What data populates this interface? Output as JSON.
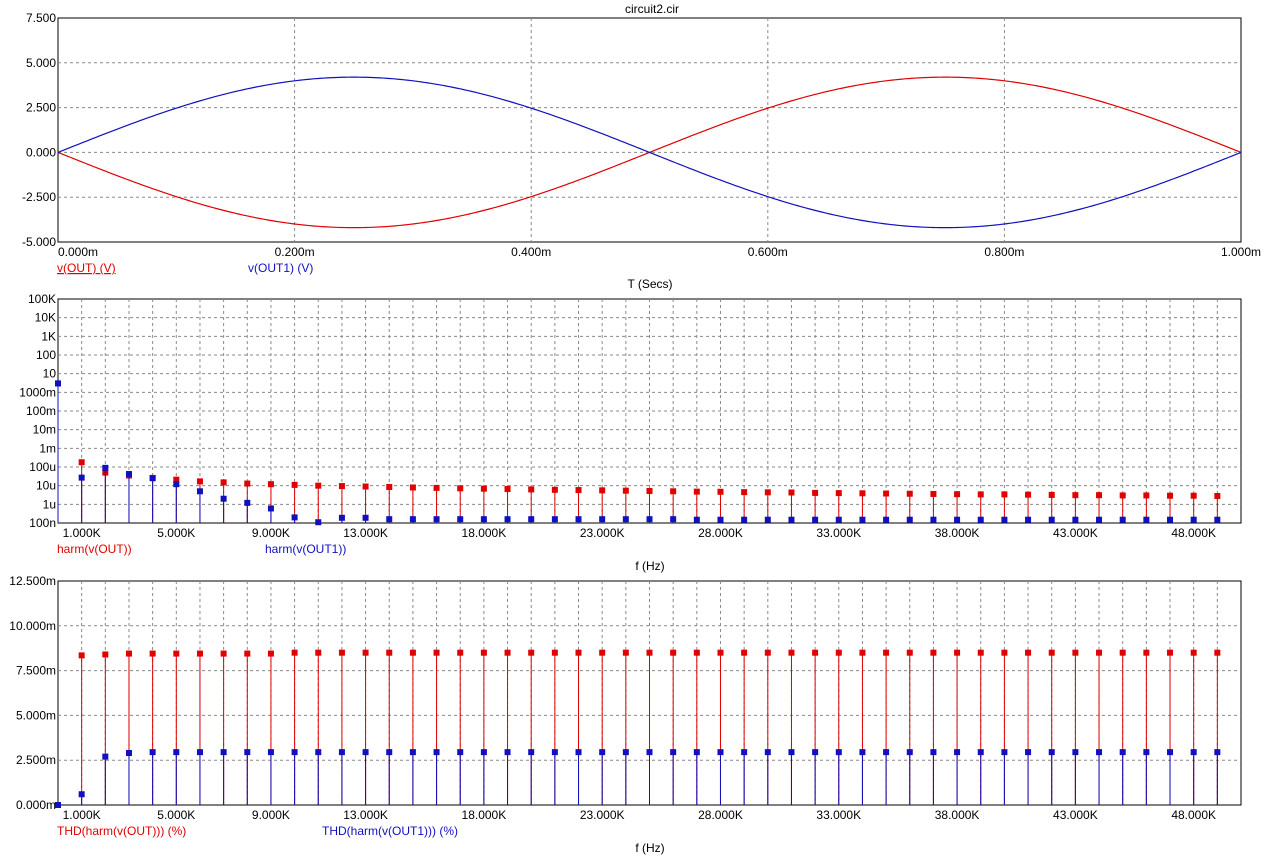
{
  "window": {
    "title": "circuit2.cir"
  },
  "colors": {
    "red": "#e00000",
    "blue": "#1010c0",
    "grid": "#8a8a8a",
    "axis": "#000000"
  },
  "chart_data": [
    {
      "id": "transient",
      "type": "line",
      "xlabel": "T (Secs)",
      "xlim": [
        0,
        0.001
      ],
      "ylim": [
        -5,
        7.5
      ],
      "x_ticks": [
        "0.000m",
        "0.200m",
        "0.400m",
        "0.600m",
        "0.800m",
        "1.000m"
      ],
      "y_ticks": [
        "7.500",
        "5.000",
        "2.500",
        "0.000",
        "-2.500",
        "-5.000"
      ],
      "grid": true,
      "series": [
        {
          "name": "v(OUT) (V)",
          "color": "#e00000",
          "amplitude": 4.2,
          "frequency_hz": 1000,
          "sign": -1
        },
        {
          "name": "v(OUT1) (V)",
          "color": "#1010c0",
          "amplitude": 4.2,
          "frequency_hz": 1000,
          "sign": 1
        }
      ]
    },
    {
      "id": "harmonics",
      "type": "scatter",
      "xlabel": "f (Hz)",
      "y_scale": "log",
      "xlim": [
        0,
        50000
      ],
      "ylim": [
        1e-07,
        100000.0
      ],
      "x_ticks": [
        "1.000K",
        "5.000K",
        "9.000K",
        "13.000K",
        "18.000K",
        "23.000K",
        "28.000K",
        "33.000K",
        "38.000K",
        "43.000K",
        "48.000K"
      ],
      "y_ticks": [
        "100K",
        "10K",
        "1K",
        "100",
        "10",
        "1000m",
        "100m",
        "10m",
        "1m",
        "100u",
        "10u",
        "1u",
        "100n"
      ],
      "grid": true,
      "series": [
        {
          "name": "harm(v(OUT))",
          "color": "#e00000",
          "x": [
            0,
            1000,
            2000,
            3000,
            4000,
            5000,
            6000,
            7000,
            8000,
            9000,
            10000,
            11000,
            12000,
            13000,
            14000,
            15000,
            16000,
            17000,
            18000,
            19000,
            20000,
            21000,
            22000,
            23000,
            24000,
            25000,
            26000,
            27000,
            28000,
            29000,
            30000,
            31000,
            32000,
            33000,
            34000,
            35000,
            36000,
            37000,
            38000,
            39000,
            40000,
            41000,
            42000,
            43000,
            44000,
            45000,
            46000,
            47000,
            48000,
            49000
          ],
          "values": [
            3.0,
            0.00018,
            5e-05,
            3.5e-05,
            2.6e-05,
            2.1e-05,
            1.7e-05,
            1.5e-05,
            1.3e-05,
            1.2e-05,
            1.1e-05,
            1e-05,
            9.5e-06,
            9e-06,
            8.5e-06,
            8e-06,
            7.6e-06,
            7.2e-06,
            6.9e-06,
            6.6e-06,
            6.3e-06,
            6e-06,
            5.8e-06,
            5.6e-06,
            5.4e-06,
            5.2e-06,
            5e-06,
            4.8e-06,
            4.7e-06,
            4.5e-06,
            4.4e-06,
            4.3e-06,
            4.1e-06,
            4e-06,
            3.9e-06,
            3.8e-06,
            3.7e-06,
            3.6e-06,
            3.5e-06,
            3.4e-06,
            3.4e-06,
            3.3e-06,
            3.2e-06,
            3.1e-06,
            3.1e-06,
            3e-06,
            3e-06,
            2.9e-06,
            2.9e-06,
            2.8e-06
          ]
        },
        {
          "name": "harm(v(OUT1))",
          "color": "#1010c0",
          "x": [
            0,
            1000,
            2000,
            3000,
            4000,
            5000,
            6000,
            7000,
            8000,
            9000,
            10000,
            11000,
            12000,
            13000,
            14000,
            15000,
            16000,
            17000,
            18000,
            19000,
            20000,
            21000,
            22000,
            23000,
            24000,
            25000,
            26000,
            27000,
            28000,
            29000,
            30000,
            31000,
            32000,
            33000,
            34000,
            35000,
            36000,
            37000,
            38000,
            39000,
            40000,
            41000,
            42000,
            43000,
            44000,
            45000,
            46000,
            47000,
            48000,
            49000
          ],
          "values": [
            3.0,
            2.7e-05,
            9e-05,
            4.2e-05,
            2.5e-05,
            1.2e-05,
            5e-06,
            2e-06,
            1.2e-06,
            6e-07,
            2e-07,
            1.1e-07,
            1.9e-07,
            1.9e-07,
            1.6e-07,
            1.6e-07,
            1.6e-07,
            1.6e-07,
            1.6e-07,
            1.6e-07,
            1.6e-07,
            1.6e-07,
            1.6e-07,
            1.6e-07,
            1.6e-07,
            1.6e-07,
            1.6e-07,
            1.5e-07,
            1.5e-07,
            1.5e-07,
            1.5e-07,
            1.5e-07,
            1.5e-07,
            1.5e-07,
            1.5e-07,
            1.5e-07,
            1.5e-07,
            1.5e-07,
            1.5e-07,
            1.5e-07,
            1.5e-07,
            1.5e-07,
            1.5e-07,
            1.5e-07,
            1.5e-07,
            1.5e-07,
            1.5e-07,
            1.5e-07,
            1.5e-07,
            1.5e-07
          ]
        }
      ]
    },
    {
      "id": "thd",
      "type": "scatter",
      "xlabel": "f (Hz)",
      "xlim": [
        0,
        50000
      ],
      "ylim": [
        0,
        0.0125
      ],
      "x_ticks": [
        "1.000K",
        "5.000K",
        "9.000K",
        "13.000K",
        "18.000K",
        "23.000K",
        "28.000K",
        "33.000K",
        "38.000K",
        "43.000K",
        "48.000K"
      ],
      "y_ticks": [
        "12.500m",
        "10.000m",
        "7.500m",
        "5.000m",
        "2.500m",
        "0.000m"
      ],
      "grid": true,
      "series": [
        {
          "name": "THD(harm(v(OUT))) (%)",
          "color": "#e00000",
          "x": [
            0,
            1000,
            2000,
            3000,
            4000,
            5000,
            6000,
            7000,
            8000,
            9000,
            10000,
            11000,
            12000,
            13000,
            14000,
            15000,
            16000,
            17000,
            18000,
            19000,
            20000,
            21000,
            22000,
            23000,
            24000,
            25000,
            26000,
            27000,
            28000,
            29000,
            30000,
            31000,
            32000,
            33000,
            34000,
            35000,
            36000,
            37000,
            38000,
            39000,
            40000,
            41000,
            42000,
            43000,
            44000,
            45000,
            46000,
            47000,
            48000,
            49000
          ],
          "values": [
            0,
            0.00835,
            0.0084,
            0.00845,
            0.00845,
            0.00845,
            0.00845,
            0.00845,
            0.00845,
            0.00845,
            0.0085,
            0.0085,
            0.0085,
            0.0085,
            0.0085,
            0.0085,
            0.0085,
            0.0085,
            0.0085,
            0.0085,
            0.0085,
            0.0085,
            0.0085,
            0.0085,
            0.0085,
            0.0085,
            0.0085,
            0.0085,
            0.0085,
            0.0085,
            0.0085,
            0.0085,
            0.0085,
            0.0085,
            0.0085,
            0.0085,
            0.0085,
            0.0085,
            0.0085,
            0.0085,
            0.0085,
            0.0085,
            0.0085,
            0.0085,
            0.0085,
            0.0085,
            0.0085,
            0.0085,
            0.0085,
            0.0085
          ]
        },
        {
          "name": "THD(harm(v(OUT1))) (%)",
          "color": "#1010c0",
          "x": [
            0,
            1000,
            2000,
            3000,
            4000,
            5000,
            6000,
            7000,
            8000,
            9000,
            10000,
            11000,
            12000,
            13000,
            14000,
            15000,
            16000,
            17000,
            18000,
            19000,
            20000,
            21000,
            22000,
            23000,
            24000,
            25000,
            26000,
            27000,
            28000,
            29000,
            30000,
            31000,
            32000,
            33000,
            34000,
            35000,
            36000,
            37000,
            38000,
            39000,
            40000,
            41000,
            42000,
            43000,
            44000,
            45000,
            46000,
            47000,
            48000,
            49000
          ],
          "values": [
            0,
            0.0006,
            0.0027,
            0.0029,
            0.00295,
            0.00295,
            0.00295,
            0.00295,
            0.00295,
            0.00295,
            0.00295,
            0.00295,
            0.00295,
            0.00295,
            0.00295,
            0.00295,
            0.00295,
            0.00295,
            0.00295,
            0.00295,
            0.00295,
            0.00295,
            0.00295,
            0.00295,
            0.00295,
            0.00295,
            0.00295,
            0.00295,
            0.00295,
            0.00295,
            0.00295,
            0.00295,
            0.00295,
            0.00295,
            0.00295,
            0.00295,
            0.00295,
            0.00295,
            0.00295,
            0.00295,
            0.00295,
            0.00295,
            0.00295,
            0.00295,
            0.00295,
            0.00295,
            0.00295,
            0.00295,
            0.00295,
            0.00295
          ]
        }
      ]
    }
  ]
}
